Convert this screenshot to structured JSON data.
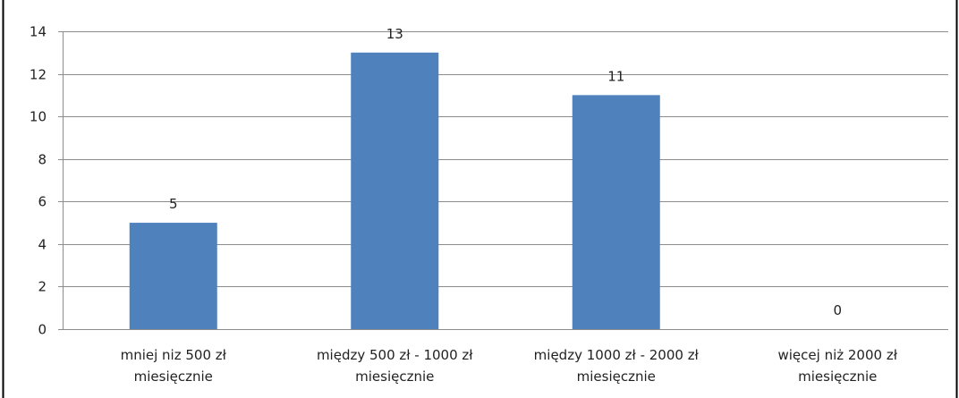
{
  "chart_data": {
    "type": "bar",
    "categories": [
      [
        "mniej niz 500 zł",
        "miesięcznie"
      ],
      [
        "między 500 zł - 1000 zł",
        "miesięcznie"
      ],
      [
        "między 1000 zł - 2000 zł",
        "miesięcznie"
      ],
      [
        "więcej niż 2000 zł",
        "miesięcznie"
      ]
    ],
    "values": [
      5,
      13,
      11,
      0
    ],
    "data_labels": [
      "5",
      "13",
      "11",
      "0"
    ],
    "yticks": [
      "0",
      "2",
      "4",
      "6",
      "8",
      "10",
      "12",
      "14"
    ],
    "ylim": [
      0,
      14
    ],
    "grid": true,
    "legend": "none",
    "bar_color": "#4f81bd",
    "title": "",
    "xlabel": "",
    "ylabel": ""
  }
}
